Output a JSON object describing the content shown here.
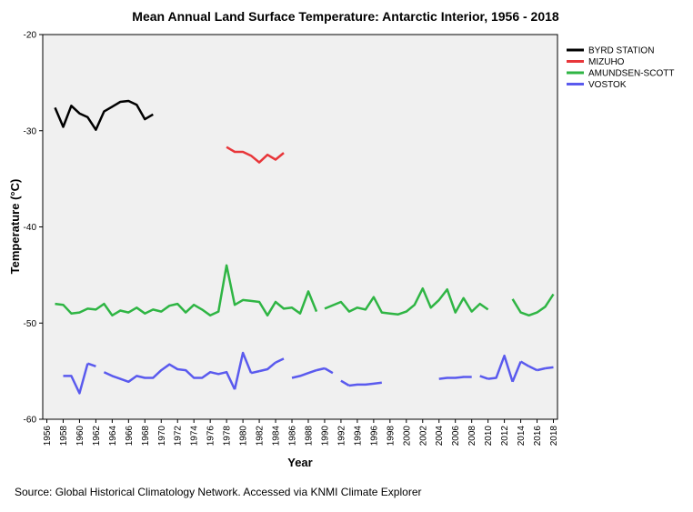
{
  "chart_data": {
    "type": "line",
    "title": "Mean Annual Land Surface Temperature: Antarctic Interior, 1956 - 2018",
    "xlabel": "Year",
    "ylabel": "Temperature (°C)",
    "xlim": [
      1955.5,
      2018.5
    ],
    "ylim": [
      -60,
      -20
    ],
    "yticks": [
      -60,
      -50,
      -40,
      -30,
      -20
    ],
    "xticks": [
      1956,
      1958,
      1960,
      1962,
      1964,
      1966,
      1968,
      1970,
      1972,
      1974,
      1976,
      1978,
      1980,
      1982,
      1984,
      1986,
      1988,
      1990,
      1992,
      1994,
      1996,
      1998,
      2000,
      2002,
      2004,
      2006,
      2008,
      2010,
      2012,
      2014,
      2016,
      2018
    ],
    "grid": false,
    "legend_position": "top-right",
    "series": [
      {
        "name": "BYRD STATION",
        "color": "#000000",
        "x": [
          1957,
          1958,
          1959,
          1960,
          1961,
          1962,
          1963,
          1964,
          1965,
          1966,
          1967,
          1968,
          1969
        ],
        "y": [
          -27.6,
          -29.6,
          -27.4,
          -28.2,
          -28.6,
          -29.9,
          -28.0,
          -27.5,
          -27.0,
          -26.9,
          -27.3,
          -28.8,
          -28.3
        ]
      },
      {
        "name": "MIZUHO",
        "color": "#e8363a",
        "x": [
          1978,
          1979,
          1980,
          1981,
          1982,
          1983,
          1984,
          1985
        ],
        "y": [
          -31.7,
          -32.2,
          -32.2,
          -32.6,
          -33.3,
          -32.5,
          -33.0,
          -32.3
        ]
      },
      {
        "name": "AMUNDSEN-SCOTT",
        "color": "#2fb544",
        "x": [
          1957,
          1958,
          1959,
          1960,
          1961,
          1962,
          1963,
          1964,
          1965,
          1966,
          1967,
          1968,
          1969,
          1970,
          1971,
          1972,
          1973,
          1974,
          1975,
          1976,
          1977,
          1978,
          1979,
          1980,
          1981,
          1982,
          1983,
          1984,
          1985,
          1986,
          1987,
          1988,
          1989,
          1990,
          1991,
          1992,
          1993,
          1994,
          1995,
          1996,
          1997,
          1998,
          1999,
          2000,
          2001,
          2002,
          2003,
          2004,
          2005,
          2006,
          2007,
          2008,
          2009,
          2010,
          2011,
          2012,
          2013,
          2014,
          2015,
          2016,
          2017,
          2018
        ],
        "y": [
          -48.0,
          -48.1,
          -49.0,
          -48.9,
          -48.5,
          -48.6,
          -48.0,
          -49.2,
          -48.7,
          -48.9,
          -48.4,
          -49.0,
          -48.6,
          -48.8,
          -48.2,
          -48.0,
          -48.9,
          -48.1,
          -48.6,
          -49.2,
          -48.8,
          -44.0,
          -48.1,
          -47.6,
          -47.7,
          -47.8,
          -49.2,
          -47.8,
          -48.5,
          -48.4,
          -49.0,
          -46.7,
          -48.8,
          -48.5,
          null,
          -47.8,
          -48.8,
          -48.4,
          -48.6,
          -47.3,
          -48.9,
          -49.0,
          -49.1,
          -48.8,
          -48.1,
          -46.4,
          -48.4,
          -47.6,
          -46.5,
          -48.9,
          -47.4,
          -48.8,
          -48.0,
          -48.6,
          -48.4,
          null,
          -47.5,
          -48.9,
          -49.2,
          -48.9,
          -48.3,
          -47.0
        ],
        "segments": [
          [
            1957,
            1989
          ],
          [
            1990,
            2010
          ],
          [
            2012,
            2018
          ]
        ]
      },
      {
        "name": "VOSTOK",
        "color": "#5a5aee",
        "x": [
          1958,
          1959,
          1960,
          1961,
          1962,
          1963,
          1964,
          1965,
          1966,
          1967,
          1968,
          1969,
          1970,
          1971,
          1972,
          1973,
          1974,
          1975,
          1976,
          1977,
          1978,
          1979,
          1980,
          1981,
          1982,
          1983,
          1984,
          1985,
          1986,
          1987,
          1988,
          1989,
          1990,
          1991,
          1992,
          1993,
          1994,
          1995,
          1996,
          1997,
          2004,
          2005,
          2006,
          2007,
          2008,
          2009,
          2010,
          2011,
          2012,
          2013,
          2014,
          2015,
          2016,
          2017,
          2018
        ],
        "y": [
          -55.5,
          -55.5,
          -57.3,
          -54.2,
          -54.5,
          -55.1,
          -55.5,
          -55.8,
          -56.1,
          -55.5,
          -55.7,
          -55.7,
          -54.9,
          -54.3,
          -54.8,
          -54.9,
          -55.7,
          -55.7,
          -55.1,
          -55.3,
          -55.1,
          -56.9,
          -53.1,
          -55.2,
          -55.0,
          -54.8,
          -54.1,
          -53.7,
          -55.7,
          -55.5,
          -55.2,
          -54.9,
          -54.7,
          -55.2,
          -56.0,
          -56.5,
          -56.4,
          -56.4,
          -56.3,
          -56.2,
          -55.8,
          -55.7,
          -55.7,
          -55.6,
          -55.6,
          -55.5,
          -55.8,
          -55.7,
          -53.4,
          -56.1,
          -54.0,
          -54.5,
          -54.9,
          -54.7,
          -54.6
        ],
        "segments": [
          [
            1958,
            1961
          ],
          [
            1961,
            1962
          ],
          [
            1963,
            1979
          ],
          [
            1979,
            1981
          ],
          [
            1981,
            1982
          ],
          [
            1982,
            1984
          ],
          [
            1984,
            1985
          ],
          [
            1986,
            1989
          ],
          [
            1989,
            1990
          ],
          [
            1990,
            1991
          ],
          [
            1992,
            1993
          ],
          [
            1993,
            1997
          ],
          [
            2004,
            2008
          ],
          [
            2009,
            2010
          ],
          [
            2010,
            2013
          ],
          [
            2013,
            2014
          ],
          [
            2014,
            2015
          ],
          [
            2015,
            2016
          ],
          [
            2016,
            2017
          ],
          [
            2017,
            2018
          ]
        ]
      }
    ],
    "source": "Source: Global Historical Climatology Network. Accessed via KNMI Climate Explorer"
  }
}
